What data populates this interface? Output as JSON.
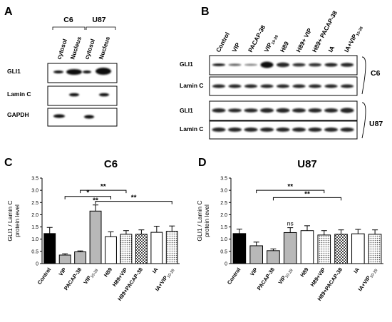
{
  "panels": {
    "a": "A",
    "b": "B",
    "c": "C",
    "d": "D"
  },
  "blot_a": {
    "groups": [
      "C6",
      "U87"
    ],
    "lanes": [
      "cytosol",
      "Nucleus",
      "cytosol",
      "Nucleus"
    ],
    "rows": [
      "GLI1",
      "Lamin C",
      "GAPDH"
    ]
  },
  "blot_b": {
    "lanes": [
      "Control",
      "VIP",
      "PACAP-38",
      "VIP",
      "H89",
      "H89+ VIP",
      "H89+ PACAP-38",
      "IA",
      "IA+VIP"
    ],
    "lane_subscripts": [
      "",
      "",
      "",
      "10-28",
      "",
      "",
      "",
      "",
      "10-28"
    ],
    "cell_lines": [
      "C6",
      "U87"
    ],
    "rows": [
      "GLI1",
      "Lamin C"
    ]
  },
  "chart_data": [
    {
      "type": "bar",
      "title": "C6",
      "ylabel_lines": [
        "GLI1 / Lamin C",
        "protein level"
      ],
      "ylim": [
        0,
        3.5
      ],
      "yticks": [
        "0",
        "0.5",
        "1.0",
        "1.5",
        "2.0",
        "2.5",
        "3.0",
        "3.5"
      ],
      "categories": [
        "Control",
        "VIP",
        "PACAP-38",
        "VIP",
        "H89",
        "H89+VIP",
        "H89+PACAP-38",
        "IA",
        "IA+VIP"
      ],
      "category_subscripts": [
        "",
        "",
        "",
        "10-28",
        "",
        "",
        "",
        "",
        "10-28"
      ],
      "values": [
        1.23,
        0.35,
        0.48,
        2.15,
        1.1,
        1.2,
        1.2,
        1.28,
        1.32
      ],
      "errors": [
        0.25,
        0.05,
        0.04,
        0.25,
        0.2,
        0.15,
        0.18,
        0.25,
        0.22
      ],
      "patterns": [
        "black",
        "gray",
        "gray",
        "gray",
        "white",
        "dotted",
        "checker",
        "white",
        "dotted"
      ],
      "bar_labels": [
        "",
        "",
        "",
        "**",
        "",
        "",
        "",
        "",
        ""
      ],
      "comparisons": [
        {
          "from": 2,
          "to": 5,
          "y": 3.0,
          "label": "**"
        },
        {
          "from": 1,
          "to": 4,
          "y": 2.75,
          "label": "*"
        },
        {
          "from": 3,
          "to": 8,
          "y": 2.55,
          "label": "**"
        }
      ]
    },
    {
      "type": "bar",
      "title": "U87",
      "ylabel_lines": [
        "GLI1 / Lamin C",
        "protein level"
      ],
      "ylim": [
        0,
        3.5
      ],
      "yticks": [
        "0",
        "0.5",
        "1.0",
        "1.5",
        "2.0",
        "2.5",
        "3.0",
        "3.5"
      ],
      "categories": [
        "Control",
        "VIP",
        "PACAP-38",
        "VIP",
        "H89",
        "H89+VIP",
        "H89+PACAP-38",
        "IA",
        "IA+VIP"
      ],
      "category_subscripts": [
        "",
        "",
        "",
        "10-28",
        "",
        "",
        "",
        "",
        "10-28"
      ],
      "values": [
        1.23,
        0.73,
        0.53,
        1.27,
        1.35,
        1.17,
        1.2,
        1.22,
        1.2
      ],
      "errors": [
        0.18,
        0.15,
        0.07,
        0.2,
        0.2,
        0.18,
        0.18,
        0.18,
        0.18
      ],
      "patterns": [
        "black",
        "gray",
        "gray",
        "gray",
        "white",
        "dotted",
        "checker",
        "white",
        "dotted"
      ],
      "bar_labels": [
        "",
        "",
        "",
        "ns",
        "",
        "",
        "",
        "",
        ""
      ],
      "comparisons": [
        {
          "from": 1,
          "to": 5,
          "y": 3.0,
          "label": "**"
        },
        {
          "from": 2,
          "to": 6,
          "y": 2.7,
          "label": "**"
        }
      ]
    }
  ]
}
